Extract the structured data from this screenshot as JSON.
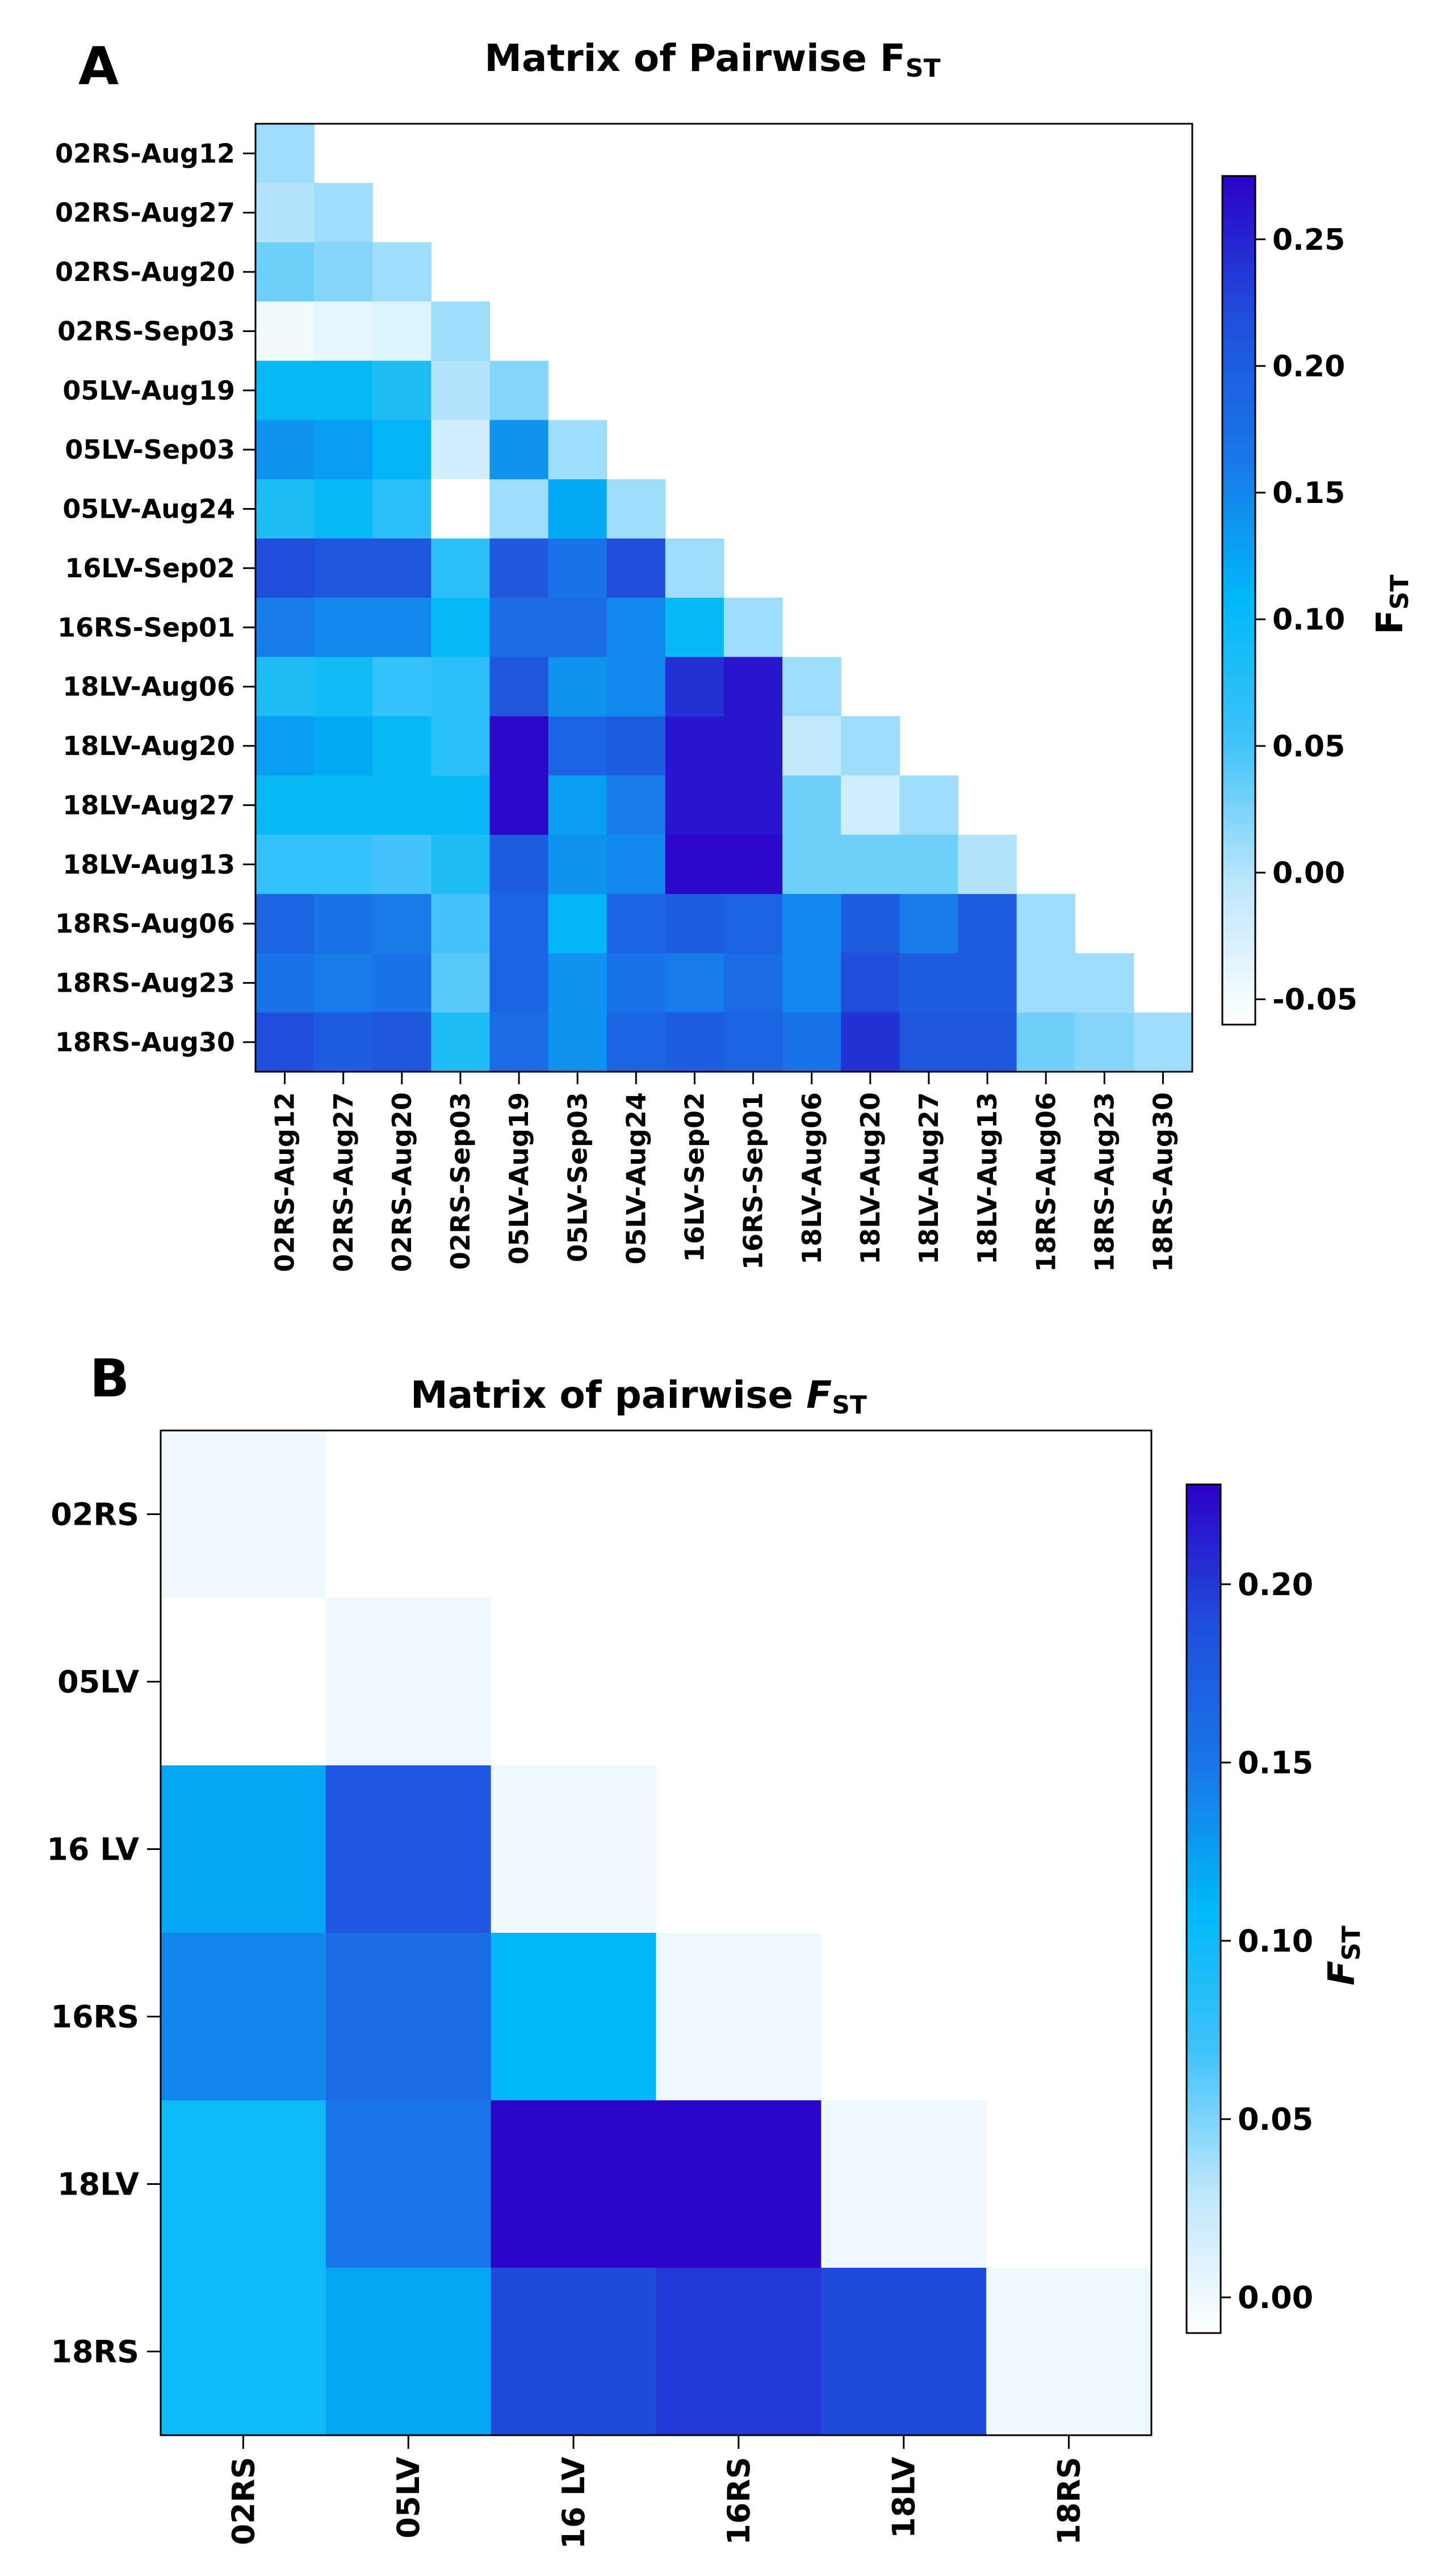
{
  "chart_data": [
    {
      "panel_letter": "A",
      "type": "heatmap",
      "title_main": "Matrix of Pairwise F",
      "title_sub": "ST",
      "rows": [
        "02RS-Aug12",
        "02RS-Aug27",
        "02RS-Aug20",
        "02RS-Sep03",
        "05LV-Aug19",
        "05LV-Sep03",
        "05LV-Aug24",
        "16LV-Sep02",
        "16RS-Sep01",
        "18LV-Aug06",
        "18LV-Aug20",
        "18LV-Aug27",
        "18LV-Aug13",
        "18RS-Aug06",
        "18RS-Aug23",
        "18RS-Aug30"
      ],
      "columns": [
        "02RS-Aug12",
        "02RS-Aug27",
        "02RS-Aug20",
        "02RS-Sep03",
        "05LV-Aug19",
        "05LV-Sep03",
        "05LV-Aug24",
        "16LV-Sep02",
        "16RS-Sep01",
        "18LV-Aug06",
        "18LV-Aug20",
        "18LV-Aug27",
        "18LV-Aug13",
        "18RS-Aug06",
        "18RS-Aug23",
        "18RS-Aug30"
      ],
      "values": [
        [
          0.01
        ],
        [
          0.0,
          0.01
        ],
        [
          0.03,
          0.02,
          0.01
        ],
        [
          -0.05,
          -0.04,
          -0.03,
          0.01
        ],
        [
          0.1,
          0.1,
          0.08,
          0.0,
          0.02
        ],
        [
          0.14,
          0.13,
          0.11,
          -0.02,
          0.14,
          0.01
        ],
        [
          0.08,
          0.1,
          0.07,
          -0.06,
          0.01,
          0.12,
          0.01
        ],
        [
          0.22,
          0.21,
          0.21,
          0.07,
          0.21,
          0.17,
          0.22,
          0.01
        ],
        [
          0.16,
          0.15,
          0.15,
          0.1,
          0.18,
          0.18,
          0.15,
          0.1,
          0.01
        ],
        [
          0.08,
          0.09,
          0.06,
          0.07,
          0.21,
          0.14,
          0.15,
          0.24,
          0.26,
          0.01
        ],
        [
          0.13,
          0.12,
          0.1,
          0.07,
          0.27,
          0.19,
          0.2,
          0.26,
          0.26,
          -0.01,
          0.01
        ],
        [
          0.1,
          0.1,
          0.1,
          0.1,
          0.27,
          0.13,
          0.16,
          0.26,
          0.26,
          0.03,
          -0.02,
          0.01
        ],
        [
          0.06,
          0.06,
          0.05,
          0.08,
          0.2,
          0.14,
          0.15,
          0.27,
          0.27,
          0.03,
          0.03,
          0.03,
          0.0
        ],
        [
          0.19,
          0.17,
          0.16,
          0.05,
          0.19,
          0.11,
          0.19,
          0.2,
          0.19,
          0.15,
          0.2,
          0.16,
          0.2,
          0.01
        ],
        [
          0.17,
          0.16,
          0.17,
          0.04,
          0.19,
          0.14,
          0.17,
          0.16,
          0.18,
          0.15,
          0.22,
          0.2,
          0.2,
          0.01,
          0.01
        ],
        [
          0.22,
          0.2,
          0.21,
          0.08,
          0.18,
          0.14,
          0.19,
          0.2,
          0.19,
          0.17,
          0.24,
          0.21,
          0.21,
          0.03,
          0.02,
          0.01
        ]
      ],
      "colorbar": {
        "label_main": "F",
        "label_sub": "ST",
        "range": [
          -0.06,
          0.275
        ],
        "ticks": [
          -0.05,
          0.0,
          0.05,
          0.1,
          0.15,
          0.2,
          0.25
        ],
        "tick_labels": [
          "-0.05",
          "0.00",
          "0.05",
          "0.10",
          "0.15",
          "0.20",
          "0.25"
        ]
      }
    },
    {
      "panel_letter": "B",
      "type": "heatmap",
      "title_main": "Matrix of pairwise ",
      "title_italic": "F",
      "title_sub": "ST",
      "rows": [
        "02RS",
        "05LV",
        "16 LV",
        "16RS",
        "18LV",
        "18RS"
      ],
      "columns": [
        "02RS",
        "05LV",
        "16 LV",
        "16RS",
        "18LV",
        "18RS"
      ],
      "values": [
        [
          0.0
        ],
        [
          -0.01,
          0.0
        ],
        [
          0.12,
          0.18,
          0.0
        ],
        [
          0.14,
          0.16,
          0.11,
          0.0
        ],
        [
          0.1,
          0.15,
          0.225,
          0.225,
          0.0
        ],
        [
          0.1,
          0.12,
          0.19,
          0.2,
          0.19,
          0.0
        ]
      ],
      "colorbar": {
        "label_main": "F",
        "label_sub": "ST",
        "range": [
          -0.01,
          0.228
        ],
        "ticks": [
          0.0,
          0.05,
          0.1,
          0.15,
          0.2
        ],
        "tick_labels": [
          "0.00",
          "0.05",
          "0.10",
          "0.15",
          "0.20"
        ]
      }
    }
  ],
  "colors": {
    "scale": [
      "#ffffff",
      "#bde6fb",
      "#3ec2f9",
      "#00b8f8",
      "#1877e8",
      "#1f4fdc",
      "#2c00c8"
    ]
  }
}
